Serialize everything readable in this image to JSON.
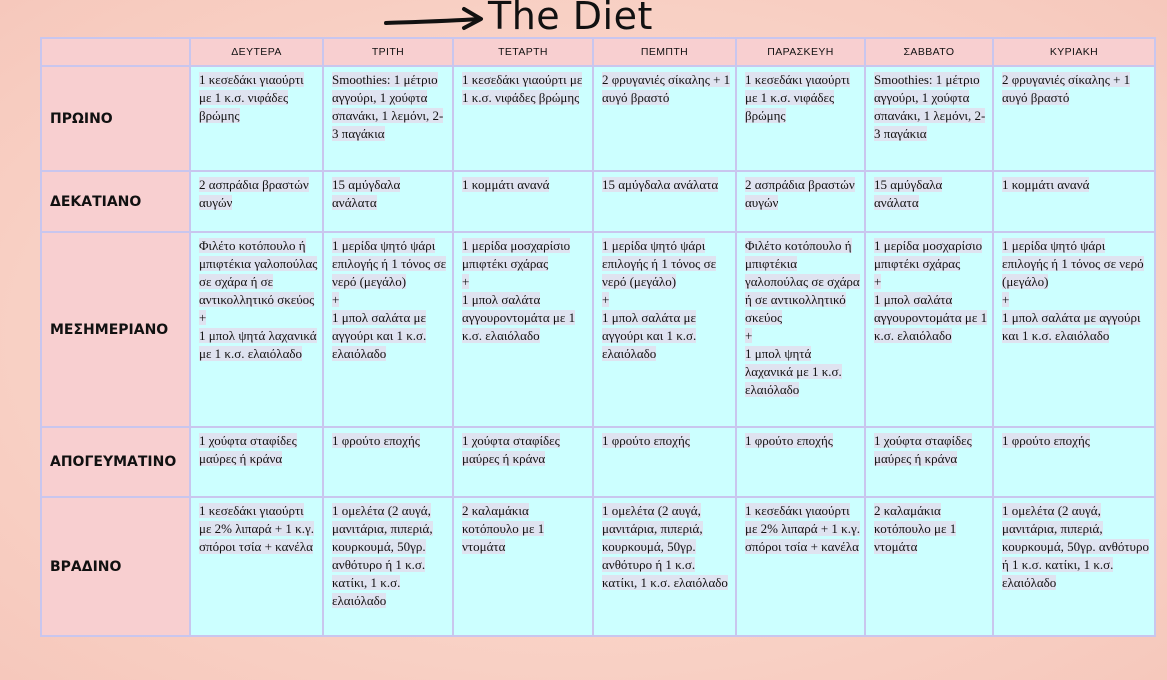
{
  "title": "The Diet",
  "days": [
    "ΔΕΥΤΕΡΑ",
    "ΤΡΙΤΗ",
    "ΤΕΤΑΡΤΗ",
    "ΠΕΜΠΤΗ",
    "ΠΑΡΑΣΚΕΥΗ",
    "ΣΑΒΒΑΤΟ",
    "ΚΥΡΙΑΚΗ"
  ],
  "meals": [
    {
      "name": "ΠΡΩΙΝΟ",
      "cells": [
        "1 κεσεδάκι γιαούρτι με 1 κ.σ. νιφάδες βρώμης",
        "Smoothies: 1 μέτριο αγγούρι, 1 χούφτα σπανάκι, 1 λεμόνι, 2-3 παγάκια",
        "1 κεσεδάκι γιαούρτι με 1 κ.σ. νιφάδες βρώμης",
        "2 φρυγανιές σίκαλης  + 1 αυγό βραστό",
        "1 κεσεδάκι γιαούρτι με 1 κ.σ. νιφάδες βρώμης",
        "Smoothies: 1 μέτριο αγγούρι, 1 χούφτα σπανάκι, 1 λεμόνι, 2-3 παγάκια",
        "2 φρυγανιές σίκαλης  + 1 αυγό βραστό"
      ]
    },
    {
      "name": "ΔΕΚΑΤΙΑΝΟ",
      "cells": [
        "2 ασπράδια βραστών αυγών",
        "15 αμύγδαλα ανάλατα",
        "1 κομμάτι ανανά",
        "15 αμύγδαλα ανάλατα",
        "2 ασπράδια βραστών αυγών",
        "15 αμύγδαλα ανάλατα",
        "1 κομμάτι ανανά"
      ]
    },
    {
      "name": "ΜΕΣΗΜΕΡΙΑΝΟ",
      "cells": [
        "Φιλέτο κοτόπουλο ή μπιφτέκια γαλοπούλας σε σχάρα ή σε αντικολλητικό σκεύος\n+\n1 μπολ ψητά λαχανικά με 1 κ.σ. ελαιόλαδο",
        "1 μερίδα ψητό ψάρι επιλογής ή 1 τόνος σε νερό (μεγάλο)\n+\n1 μπολ σαλάτα με αγγούρι και 1 κ.σ. ελαιόλαδο",
        "1 μερίδα μοσχαρίσιο μπιφτέκι σχάρας\n+\n1 μπολ σαλάτα αγγουροντομάτα με 1 κ.σ. ελαιόλαδο",
        "1 μερίδα ψητό ψάρι επιλογής ή 1 τόνος σε νερό  (μεγάλο)\n+\n1 μπολ σαλάτα με αγγούρι και 1 κ.σ. ελαιόλαδο",
        "Φιλέτο κοτόπουλο ή μπιφτέκια γαλοπούλας σε σχάρα ή σε αντικολλητικό σκεύος\n+\n1 μπολ ψητά λαχανικά με 1 κ.σ. ελαιόλαδο",
        "1 μερίδα μοσχαρίσιο μπιφτέκι σχάρας\n+\n1 μπολ σαλάτα αγγουροντομάτα με 1 κ.σ. ελαιόλαδο",
        "1 μερίδα ψητό ψάρι επιλογής ή 1 τόνος σε νερό (μεγάλο)\n+\n1 μπολ σαλάτα με αγγούρι και 1 κ.σ. ελαιόλαδο"
      ]
    },
    {
      "name": "ΑΠΟΓΕΥΜΑΤΙΝΟ",
      "cells": [
        " 1 χούφτα σταφίδες μαύρες ή κράνα",
        "1 φρούτο εποχής",
        " 1 χούφτα σταφίδες μαύρες ή κράνα",
        "1 φρούτο εποχής",
        "1 φρούτο εποχής",
        " 1 χούφτα σταφίδες μαύρες ή κράνα",
        "1 φρούτο εποχής"
      ]
    },
    {
      "name": "ΒΡΑΔΙΝΟ",
      "cells": [
        "1 κεσεδάκι γιαούρτι με 2% λιπαρά + 1 κ.γ. σπόροι τσία + κανέλα",
        "1 ομελέτα (2 αυγά, μανιτάρια, πιπεριά, κουρκουμά, 50γρ. ανθότυρο ή 1 κ.σ. κατίκι, 1 κ.σ. ελαιόλαδο",
        "2 καλαμάκια κοτόπουλο με 1 ντομάτα",
        "1 ομελέτα (2 αυγά, μανιτάρια, πιπεριά, κουρκουμά, 50γρ. ανθότυρο ή 1 κ.σ. κατίκι, 1 κ.σ. ελαιόλαδο",
        "1 κεσεδάκι γιαούρτι με 2% λιπαρά + 1 κ.γ. σπόροι τσία + κανέλα",
        "2 καλαμάκια κοτόπουλο με 1 ντομάτα",
        "1 ομελέτα (2 αυγά, μανιτάρια, πιπεριά, κουρκουμά, 50γρ. ανθότυρο ή 1 κ.σ. κατίκι, 1 κ.σ. ελαιόλαδο"
      ]
    }
  ],
  "colors": {
    "header_bg": "#f8cfd0",
    "cell_bg": "#ccffff",
    "border": "#c9c6ee",
    "text_highlight": "#dfe3f0"
  }
}
